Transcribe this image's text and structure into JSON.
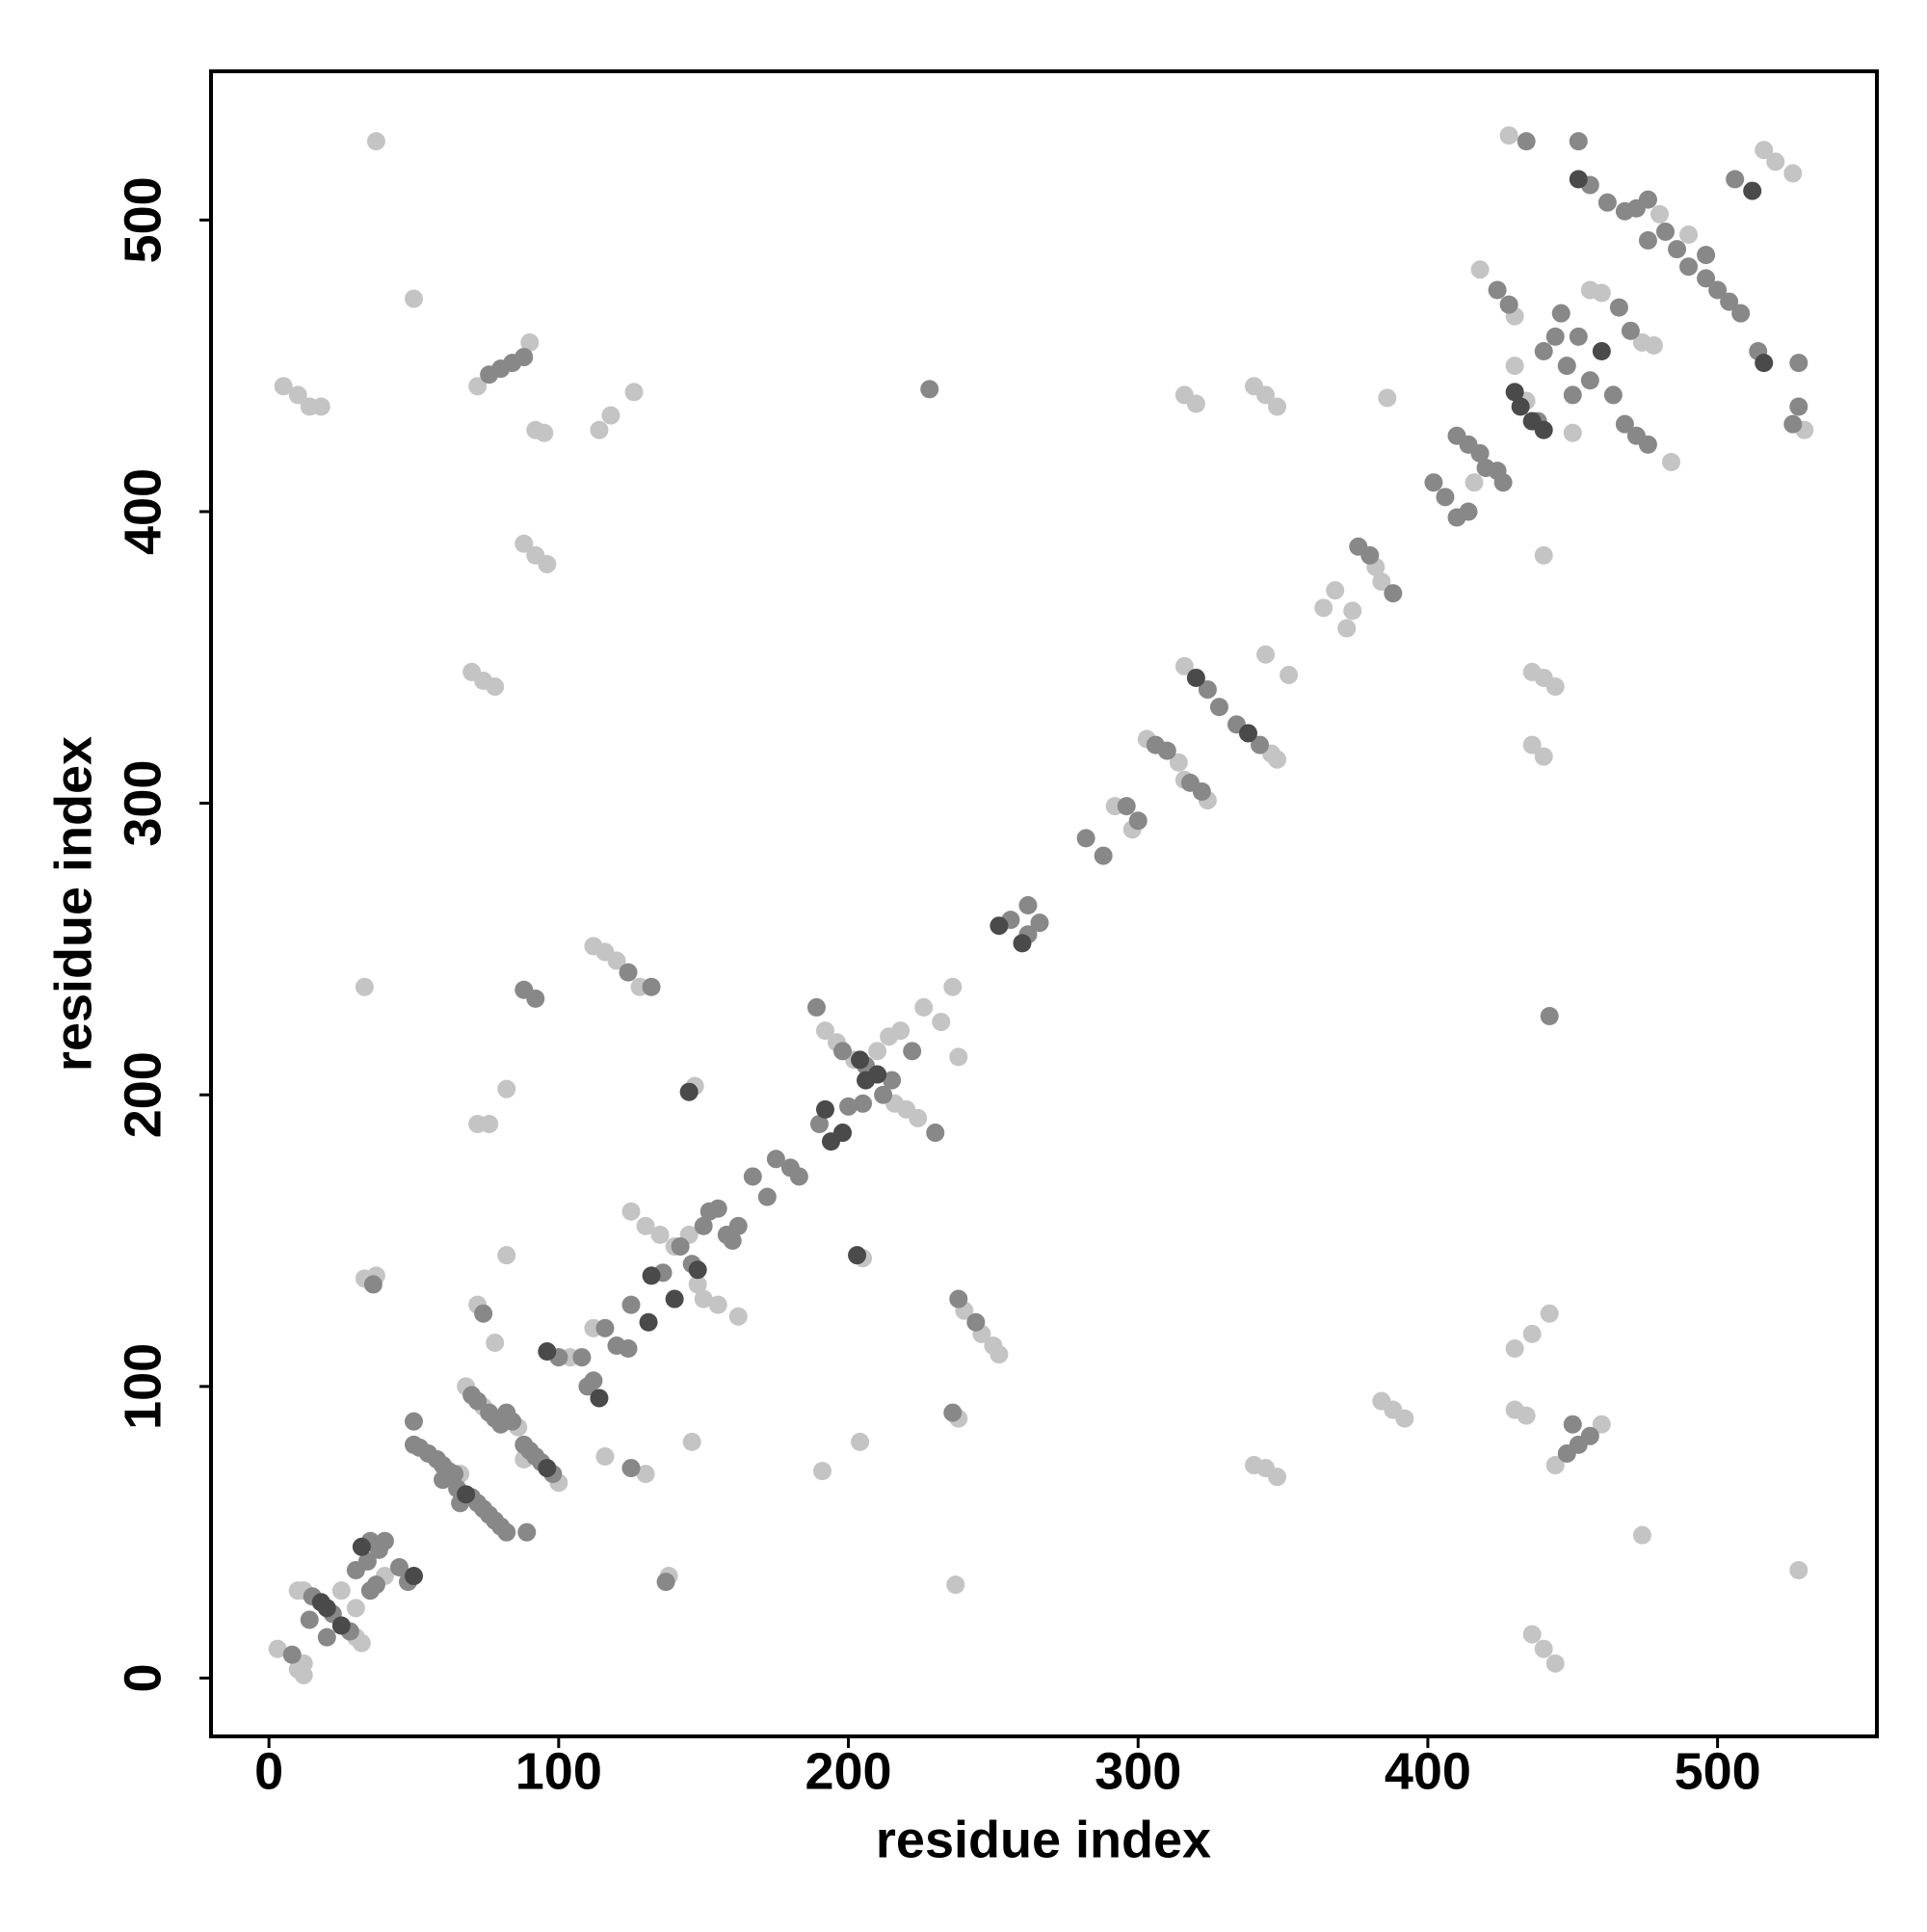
{
  "chart_data": {
    "type": "scatter",
    "x_label": "residue index",
    "y_label": "residue index",
    "xlim": [
      -20,
      555
    ],
    "ylim": [
      -20,
      551
    ],
    "xticks": [
      0,
      100,
      200,
      300,
      400,
      500
    ],
    "yticks": [
      0,
      100,
      200,
      300,
      400,
      500
    ],
    "grid": false,
    "series": [
      {
        "color": "#c4c4c4",
        "x": [
          3,
          10,
          12,
          12,
          10,
          12,
          30,
          32,
          25,
          30,
          40,
          66,
          68,
          74,
          86,
          100,
          88,
          104,
          112,
          145,
          125,
          130,
          135,
          140,
          148,
          150,
          155,
          162,
          216,
          220,
          224,
          192,
          196,
          202,
          210,
          214,
          218,
          226,
          232,
          238,
          236,
          147,
          205,
          204,
          191,
          146,
          138,
          130,
          116,
          82,
          72,
          78,
          82,
          72,
          76,
          33,
          33,
          37,
          37,
          50,
          5,
          10,
          14,
          18,
          72,
          90,
          92,
          95,
          88,
          92,
          96,
          114,
          118,
          126,
          70,
          74,
          78,
          112,
          116,
          120,
          128,
          238,
          240,
          246,
          250,
          252,
          237,
          292,
          298,
          303,
          314,
          316,
          324,
          316,
          346,
          348,
          344,
          352,
          340,
          344,
          348,
          316,
          320,
          386,
          340,
          344,
          348,
          384,
          388,
          392,
          364,
          368,
          372,
          374,
          382,
          384,
          416,
          418,
          430,
          434,
          430,
          456,
          460,
          474,
          478,
          484,
          450,
          428,
          480,
          490,
          516,
          520,
          526,
          530,
          436,
          440,
          444,
          436,
          440,
          440,
          442,
          430,
          436,
          430,
          434,
          444,
          460,
          474,
          528,
          436,
          440,
          444
        ],
        "y": [
          10,
          3,
          1,
          5,
          30,
          30,
          14,
          12,
          30,
          24,
          35,
          70,
          100,
          93,
          86,
          67,
          75,
          110,
          120,
          152,
          160,
          155,
          152,
          148,
          135,
          130,
          128,
          124,
          197,
          195,
          192,
          222,
          218,
          212,
          215,
          220,
          222,
          230,
          225,
          213,
          237,
          203,
          144,
          81,
          71,
          81,
          35,
          70,
          76,
          145,
          128,
          115,
          202,
          190,
          190,
          237,
          137,
          138,
          527,
          473,
          443,
          440,
          436,
          436,
          443,
          458,
          428,
          427,
          389,
          385,
          382,
          428,
          433,
          441,
          345,
          342,
          340,
          251,
          249,
          246,
          237,
          89,
          126,
          118,
          114,
          111,
          32,
          299,
          291,
          322,
          314,
          308,
          301,
          347,
          317,
          315,
          351,
          344,
          443,
          440,
          436,
          440,
          437,
          439,
          73,
          72,
          69,
          95,
          92,
          89,
          367,
          373,
          360,
          366,
          381,
          376,
          410,
          483,
          467,
          438,
          450,
          476,
          475,
          458,
          457,
          417,
          427,
          529,
          502,
          495,
          524,
          520,
          516,
          428,
          345,
          343,
          340,
          320,
          316,
          385,
          125,
          113,
          118,
          92,
          90,
          73,
          87,
          49,
          37,
          15,
          10,
          5
        ]
      },
      {
        "color": "#888888",
        "x": [
          8,
          15,
          22,
          14,
          20,
          28,
          35,
          38,
          40,
          34,
          30,
          37,
          45,
          48,
          35,
          50,
          50,
          52,
          55,
          58,
          60,
          62,
          64,
          60,
          65,
          70,
          72,
          74,
          76,
          78,
          80,
          82,
          89,
          66,
          70,
          72,
          76,
          78,
          80,
          82,
          84,
          88,
          90,
          92,
          94,
          98,
          100,
          108,
          112,
          110,
          116,
          120,
          124,
          125,
          136,
          142,
          146,
          150,
          152,
          155,
          158,
          160,
          162,
          167,
          172,
          175,
          180,
          183,
          190,
          200,
          205,
          212,
          230,
          189,
          198,
          206,
          222,
          215,
          137,
          125,
          74,
          36,
          76,
          80,
          84,
          88,
          88,
          92,
          124,
          132,
          228,
          236,
          238,
          244,
          256,
          262,
          262,
          266,
          282,
          288,
          296,
          300,
          306,
          310,
          318,
          322,
          324,
          328,
          334,
          342,
          376,
          380,
          388,
          402,
          406,
          410,
          414,
          410,
          414,
          418,
          420,
          424,
          426,
          424,
          428,
          438,
          440,
          444,
          448,
          452,
          456,
          464,
          450,
          446,
          466,
          470,
          468,
          472,
          476,
          434,
          452,
          456,
          462,
          468,
          472,
          476,
          482,
          486,
          490,
          496,
          500,
          504,
          508,
          496,
          476,
          506,
          514,
          528,
          528,
          526,
          442,
          448,
          452,
          456,
          450
        ],
        "y": [
          8,
          28,
          22,
          20,
          14,
          16,
          47,
          44,
          47,
          40,
          37,
          32,
          38,
          33,
          30,
          88,
          80,
          79,
          77,
          75,
          73,
          71,
          70,
          68,
          65,
          62,
          60,
          58,
          56,
          54,
          52,
          50,
          50,
          60,
          97,
          95,
          91,
          89,
          87,
          91,
          88,
          80,
          78,
          76,
          74,
          70,
          110,
          110,
          102,
          100,
          120,
          114,
          113,
          128,
          139,
          148,
          142,
          155,
          160,
          161,
          152,
          150,
          155,
          172,
          165,
          178,
          175,
          172,
          190,
          196,
          197,
          200,
          187,
          230,
          215,
          210,
          215,
          205,
          33,
          72,
          125,
          135,
          447,
          449,
          451,
          453,
          236,
          233,
          242,
          237,
          442,
          91,
          130,
          122,
          260,
          255,
          265,
          259,
          288,
          282,
          299,
          294,
          320,
          318,
          307,
          304,
          339,
          333,
          327,
          320,
          388,
          385,
          372,
          410,
          405,
          398,
          400,
          426,
          423,
          420,
          415,
          414,
          410,
          476,
          471,
          431,
          455,
          460,
          450,
          460,
          445,
          440,
          440,
          468,
          470,
          462,
          430,
          426,
          423,
          527,
          527,
          512,
          506,
          503,
          504,
          507,
          496,
          490,
          484,
          480,
          476,
          472,
          468,
          488,
          493,
          514,
          455,
          451,
          436,
          430,
          227,
          77,
          80,
          83,
          87
        ]
      },
      {
        "color": "#4a4a4a",
        "x": [
          18,
          20,
          25,
          32,
          50,
          68,
          96,
          96,
          114,
          131,
          132,
          140,
          148,
          194,
          198,
          192,
          206,
          210,
          204,
          145,
          203,
          252,
          260,
          320,
          338,
          430,
          432,
          436,
          440,
          460,
          452,
          512,
          516
        ],
        "y": [
          26,
          24,
          18,
          45,
          35,
          63,
          72,
          112,
          96,
          122,
          138,
          130,
          140,
          184,
          187,
          195,
          205,
          207,
          212,
          201,
          145,
          258,
          252,
          343,
          324,
          441,
          436,
          431,
          428,
          455,
          514,
          510,
          451
        ]
      }
    ]
  }
}
